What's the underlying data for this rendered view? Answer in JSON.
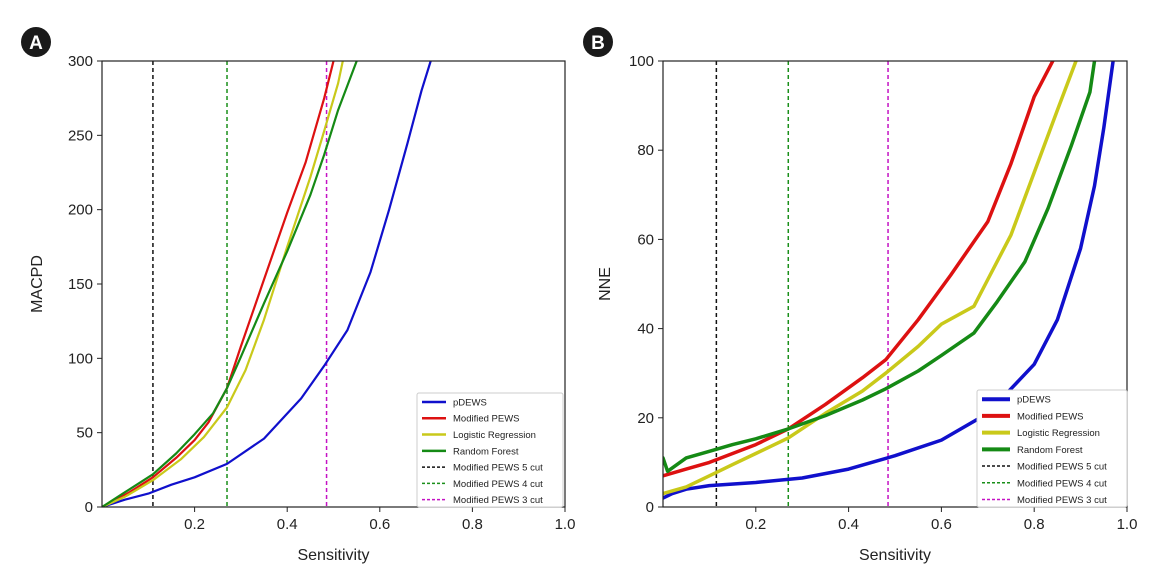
{
  "chart_data": [
    {
      "type": "line",
      "panel_label": "A",
      "xlabel": "Sensitivity",
      "ylabel": "MACPD",
      "xlim": [
        0,
        1.0
      ],
      "ylim": [
        0,
        300
      ],
      "x_ticks": [
        0.2,
        0.4,
        0.6,
        0.8,
        1.0
      ],
      "x_tick_labels": [
        "0.2",
        "0.4",
        "0.6",
        "0.8",
        "1.0"
      ],
      "y_ticks": [
        0,
        50,
        100,
        150,
        200,
        250,
        300
      ],
      "y_tick_labels": [
        "0",
        "50",
        "100",
        "150",
        "200",
        "250",
        "300"
      ],
      "series": [
        {
          "name": "pDEWS",
          "color": "#1010cc",
          "points": [
            [
              0.0,
              0
            ],
            [
              0.05,
              5
            ],
            [
              0.1,
              9
            ],
            [
              0.15,
              15
            ],
            [
              0.2,
              20
            ],
            [
              0.27,
              29
            ],
            [
              0.35,
              46
            ],
            [
              0.43,
              73
            ],
            [
              0.48,
              95
            ],
            [
              0.53,
              119
            ],
            [
              0.58,
              158
            ],
            [
              0.62,
              200
            ],
            [
              0.66,
              245
            ],
            [
              0.69,
              280
            ],
            [
              0.71,
              300
            ]
          ]
        },
        {
          "name": "Modified PEWS",
          "color": "#dd1111",
          "points": [
            [
              0.0,
              0
            ],
            [
              0.06,
              10
            ],
            [
              0.11,
              20
            ],
            [
              0.16,
              33
            ],
            [
              0.2,
              45
            ],
            [
              0.23,
              57
            ],
            [
              0.27,
              80
            ],
            [
              0.3,
              108
            ],
            [
              0.35,
              153
            ],
            [
              0.4,
              198
            ],
            [
              0.44,
              232
            ],
            [
              0.48,
              275
            ],
            [
              0.5,
              300
            ]
          ]
        },
        {
          "name": "Logistic Regression",
          "color": "#c9c91a",
          "points": [
            [
              0.0,
              0
            ],
            [
              0.05,
              7
            ],
            [
              0.11,
              18
            ],
            [
              0.17,
              32
            ],
            [
              0.22,
              47
            ],
            [
              0.27,
              67
            ],
            [
              0.31,
              92
            ],
            [
              0.35,
              126
            ],
            [
              0.4,
              175
            ],
            [
              0.45,
              222
            ],
            [
              0.48,
              253
            ],
            [
              0.51,
              285
            ],
            [
              0.52,
              300
            ]
          ]
        },
        {
          "name": "Random Forest",
          "color": "#158a15",
          "points": [
            [
              0.0,
              0
            ],
            [
              0.05,
              10
            ],
            [
              0.11,
              22
            ],
            [
              0.16,
              36
            ],
            [
              0.2,
              49
            ],
            [
              0.24,
              63
            ],
            [
              0.27,
              80
            ],
            [
              0.3,
              101
            ],
            [
              0.35,
              137
            ],
            [
              0.4,
              172
            ],
            [
              0.45,
              210
            ],
            [
              0.48,
              237
            ],
            [
              0.51,
              267
            ],
            [
              0.55,
              300
            ]
          ]
        }
      ],
      "cutoffs": [
        {
          "name": "Modified PEWS 5 cut",
          "color": "#111111",
          "x": 0.11
        },
        {
          "name": "Modified PEWS 4 cut",
          "color": "#1a8f1a",
          "x": 0.27
        },
        {
          "name": "Modified PEWS 3 cut",
          "color": "#c412c4",
          "x": 0.485
        }
      ]
    },
    {
      "type": "line",
      "panel_label": "B",
      "xlabel": "Sensitivity",
      "ylabel": "NNE",
      "xlim": [
        0,
        1.0
      ],
      "ylim": [
        0,
        100
      ],
      "x_ticks": [
        0.2,
        0.4,
        0.6,
        0.8,
        1.0
      ],
      "x_tick_labels": [
        "0.2",
        "0.4",
        "0.6",
        "0.8",
        "1.0"
      ],
      "y_ticks": [
        0,
        20,
        40,
        60,
        80,
        100
      ],
      "y_tick_labels": [
        "0",
        "20",
        "40",
        "60",
        "80",
        "100"
      ],
      "series": [
        {
          "name": "pDEWS",
          "color": "#1010cc",
          "points": [
            [
              0.0,
              2
            ],
            [
              0.02,
              3
            ],
            [
              0.05,
              4
            ],
            [
              0.1,
              4.8
            ],
            [
              0.2,
              5.5
            ],
            [
              0.3,
              6.5
            ],
            [
              0.4,
              8.5
            ],
            [
              0.5,
              11.5
            ],
            [
              0.6,
              15
            ],
            [
              0.7,
              21
            ],
            [
              0.8,
              32
            ],
            [
              0.85,
              42
            ],
            [
              0.9,
              58
            ],
            [
              0.93,
              72
            ],
            [
              0.95,
              85
            ],
            [
              0.97,
              100
            ]
          ]
        },
        {
          "name": "Modified PEWS",
          "color": "#dd1111",
          "points": [
            [
              0.0,
              7
            ],
            [
              0.05,
              8.5
            ],
            [
              0.1,
              10
            ],
            [
              0.15,
              12
            ],
            [
              0.2,
              14
            ],
            [
              0.27,
              17.5
            ],
            [
              0.35,
              23
            ],
            [
              0.43,
              29
            ],
            [
              0.48,
              33
            ],
            [
              0.55,
              42
            ],
            [
              0.62,
              52
            ],
            [
              0.7,
              64
            ],
            [
              0.75,
              77
            ],
            [
              0.8,
              92
            ],
            [
              0.84,
              100
            ]
          ]
        },
        {
          "name": "Logistic Regression",
          "color": "#c9c91a",
          "points": [
            [
              0.0,
              3
            ],
            [
              0.05,
              4.5
            ],
            [
              0.1,
              7
            ],
            [
              0.15,
              9.5
            ],
            [
              0.2,
              12
            ],
            [
              0.27,
              15.5
            ],
            [
              0.35,
              21
            ],
            [
              0.43,
              26
            ],
            [
              0.48,
              30
            ],
            [
              0.55,
              36
            ],
            [
              0.6,
              41
            ],
            [
              0.67,
              45
            ],
            [
              0.7,
              51
            ],
            [
              0.75,
              61
            ],
            [
              0.8,
              75
            ],
            [
              0.85,
              89
            ],
            [
              0.89,
              100
            ]
          ]
        },
        {
          "name": "Random Forest",
          "color": "#158a15",
          "points": [
            [
              0.0,
              11
            ],
            [
              0.01,
              8
            ],
            [
              0.05,
              11
            ],
            [
              0.1,
              12.5
            ],
            [
              0.15,
              14
            ],
            [
              0.2,
              15.3
            ],
            [
              0.27,
              17.5
            ],
            [
              0.35,
              20.5
            ],
            [
              0.43,
              24
            ],
            [
              0.48,
              26.5
            ],
            [
              0.55,
              30.5
            ],
            [
              0.6,
              34
            ],
            [
              0.67,
              39
            ],
            [
              0.72,
              46
            ],
            [
              0.78,
              55
            ],
            [
              0.83,
              67
            ],
            [
              0.88,
              81
            ],
            [
              0.92,
              93
            ],
            [
              0.93,
              100
            ]
          ]
        }
      ],
      "cutoffs": [
        {
          "name": "Modified PEWS 5 cut",
          "color": "#111111",
          "x": 0.115
        },
        {
          "name": "Modified PEWS 4 cut",
          "color": "#1a8f1a",
          "x": 0.27
        },
        {
          "name": "Modified PEWS 3 cut",
          "color": "#c412c4",
          "x": 0.485
        }
      ]
    }
  ]
}
